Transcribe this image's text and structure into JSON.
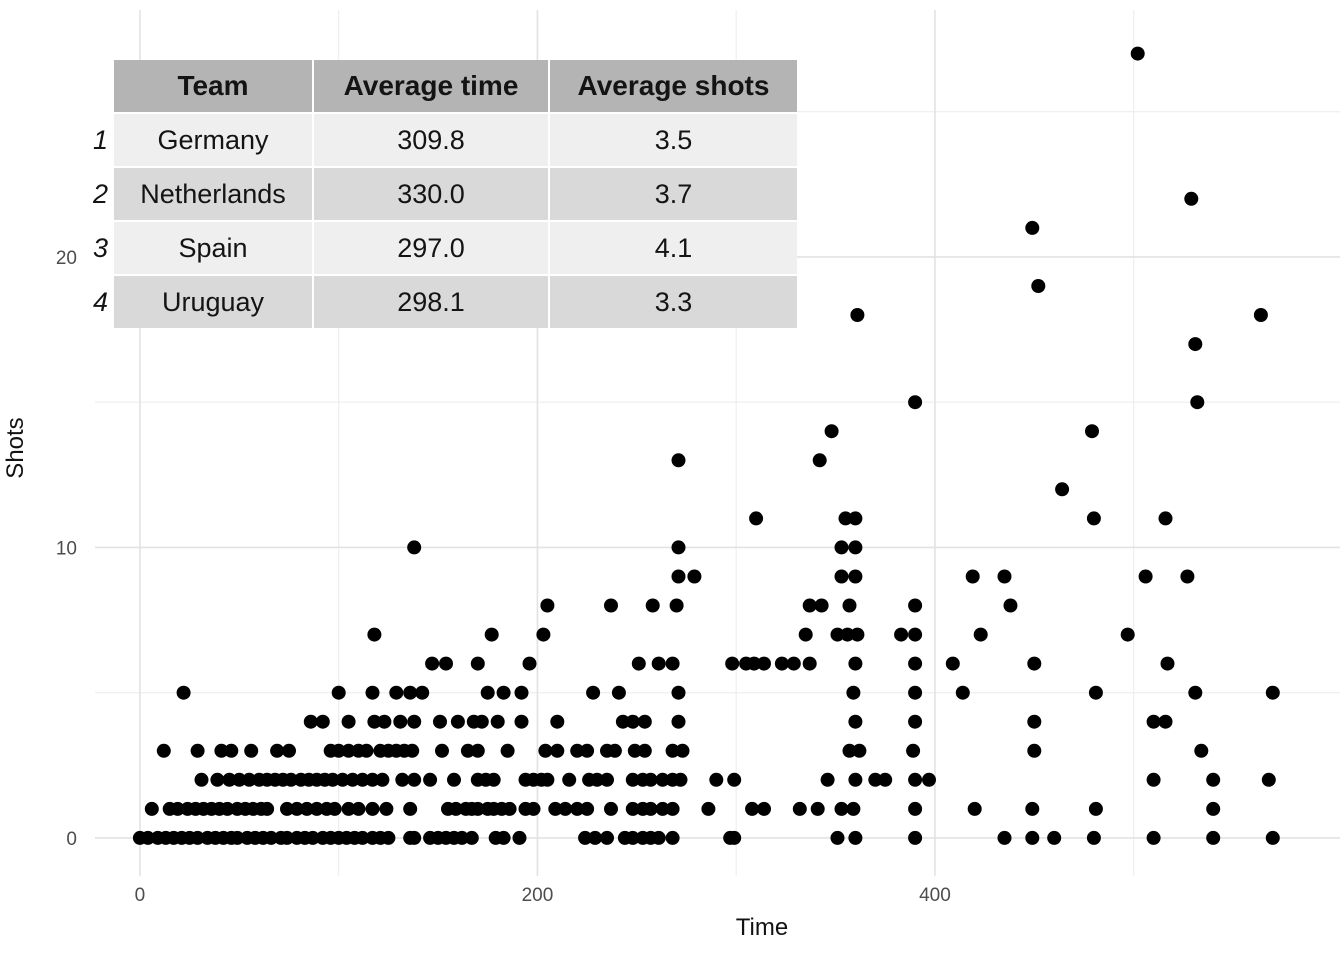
{
  "table": {
    "headers": [
      "Team",
      "Average time",
      "Average shots"
    ],
    "rows": [
      {
        "index": "1",
        "team": "Germany",
        "avg_time": "309.8",
        "avg_shots": "3.5"
      },
      {
        "index": "2",
        "team": "Netherlands",
        "avg_time": "330.0",
        "avg_shots": "3.7"
      },
      {
        "index": "3",
        "team": "Spain",
        "avg_time": "297.0",
        "avg_shots": "4.1"
      },
      {
        "index": "4",
        "team": "Uruguay",
        "avg_time": "298.1",
        "avg_shots": "3.3"
      }
    ]
  },
  "axes": {
    "x": {
      "title": "Time",
      "ticks": [
        0,
        200,
        400
      ]
    },
    "y": {
      "title": "Shots",
      "ticks": [
        0,
        10,
        20
      ]
    }
  },
  "colors": {
    "point": "#000000",
    "grid_major": "#e2e2e2",
    "grid_minor": "#eeeeee",
    "tick_label": "#4d4d4d",
    "table_header_bg": "#b4b4b4",
    "table_row_light": "#efefef",
    "table_row_dark": "#d9d9d9",
    "background": "#ffffff"
  },
  "chart_data": {
    "type": "scatter",
    "title": "",
    "xlabel": "Time",
    "ylabel": "Shots",
    "xlim": [
      -22.6,
      603.8
    ],
    "ylim": [
      -1.31,
      28.5
    ],
    "grid": true,
    "legend": "none",
    "x_major_ticks": [
      0,
      200,
      400
    ],
    "x_minor_gridlines": [
      100,
      300,
      500
    ],
    "y_major_ticks": [
      0,
      10,
      20
    ],
    "y_minor_gridlines": [
      5,
      15,
      25
    ],
    "point_radius": 7,
    "points": [
      [
        502,
        27
      ],
      [
        449,
        21
      ],
      [
        529,
        22
      ],
      [
        452,
        19
      ],
      [
        564,
        18
      ],
      [
        361,
        18
      ],
      [
        531,
        17
      ],
      [
        532,
        15
      ],
      [
        390,
        15
      ],
      [
        479,
        14
      ],
      [
        348,
        14
      ],
      [
        342,
        13
      ],
      [
        271,
        13
      ],
      [
        464,
        12
      ],
      [
        310,
        11
      ],
      [
        355,
        11
      ],
      [
        360,
        11
      ],
      [
        480,
        11
      ],
      [
        516,
        11
      ],
      [
        138,
        10
      ],
      [
        271,
        10
      ],
      [
        353,
        10
      ],
      [
        360,
        10
      ],
      [
        271,
        9
      ],
      [
        279,
        9
      ],
      [
        353,
        9
      ],
      [
        360,
        9
      ],
      [
        419,
        9
      ],
      [
        435,
        9
      ],
      [
        506,
        9
      ],
      [
        527,
        9
      ],
      [
        205,
        8
      ],
      [
        237,
        8
      ],
      [
        258,
        8
      ],
      [
        270,
        8
      ],
      [
        337,
        8
      ],
      [
        343,
        8
      ],
      [
        357,
        8
      ],
      [
        390,
        8
      ],
      [
        438,
        8
      ],
      [
        118,
        7
      ],
      [
        177,
        7
      ],
      [
        203,
        7
      ],
      [
        335,
        7
      ],
      [
        351,
        7
      ],
      [
        356,
        7
      ],
      [
        361,
        7
      ],
      [
        383,
        7
      ],
      [
        390,
        7
      ],
      [
        423,
        7
      ],
      [
        497,
        7
      ],
      [
        147,
        6
      ],
      [
        154,
        6
      ],
      [
        170,
        6
      ],
      [
        196,
        6
      ],
      [
        251,
        6
      ],
      [
        261,
        6
      ],
      [
        268,
        6
      ],
      [
        298,
        6
      ],
      [
        305,
        6
      ],
      [
        309,
        6
      ],
      [
        314,
        6
      ],
      [
        323,
        6
      ],
      [
        329,
        6
      ],
      [
        337,
        6
      ],
      [
        360,
        6
      ],
      [
        390,
        6
      ],
      [
        409,
        6
      ],
      [
        450,
        6
      ],
      [
        517,
        6
      ],
      [
        22,
        5
      ],
      [
        100,
        5
      ],
      [
        117,
        5
      ],
      [
        129,
        5
      ],
      [
        136,
        5
      ],
      [
        142,
        5
      ],
      [
        175,
        5
      ],
      [
        183,
        5
      ],
      [
        192,
        5
      ],
      [
        228,
        5
      ],
      [
        241,
        5
      ],
      [
        271,
        5
      ],
      [
        359,
        5
      ],
      [
        390,
        5
      ],
      [
        414,
        5
      ],
      [
        481,
        5
      ],
      [
        531,
        5
      ],
      [
        570,
        5
      ],
      [
        86,
        4
      ],
      [
        92,
        4
      ],
      [
        105,
        4
      ],
      [
        118,
        4
      ],
      [
        123,
        4
      ],
      [
        131,
        4
      ],
      [
        138,
        4
      ],
      [
        151,
        4
      ],
      [
        160,
        4
      ],
      [
        168,
        4
      ],
      [
        172,
        4
      ],
      [
        180,
        4
      ],
      [
        192,
        4
      ],
      [
        210,
        4
      ],
      [
        243,
        4
      ],
      [
        248,
        4
      ],
      [
        254,
        4
      ],
      [
        271,
        4
      ],
      [
        360,
        4
      ],
      [
        390,
        4
      ],
      [
        450,
        4
      ],
      [
        510,
        4
      ],
      [
        516,
        4
      ],
      [
        12,
        3
      ],
      [
        29,
        3
      ],
      [
        41,
        3
      ],
      [
        46,
        3
      ],
      [
        56,
        3
      ],
      [
        69,
        3
      ],
      [
        75,
        3
      ],
      [
        96,
        3
      ],
      [
        100,
        3
      ],
      [
        105,
        3
      ],
      [
        110,
        3
      ],
      [
        114,
        3
      ],
      [
        121,
        3
      ],
      [
        125,
        3
      ],
      [
        129,
        3
      ],
      [
        133,
        3
      ],
      [
        137,
        3
      ],
      [
        152,
        3
      ],
      [
        165,
        3
      ],
      [
        170,
        3
      ],
      [
        185,
        3
      ],
      [
        204,
        3
      ],
      [
        210,
        3
      ],
      [
        220,
        3
      ],
      [
        225,
        3
      ],
      [
        235,
        3
      ],
      [
        239,
        3
      ],
      [
        249,
        3
      ],
      [
        254,
        3
      ],
      [
        268,
        3
      ],
      [
        273,
        3
      ],
      [
        357,
        3
      ],
      [
        362,
        3
      ],
      [
        389,
        3
      ],
      [
        450,
        3
      ],
      [
        534,
        3
      ],
      [
        31,
        2
      ],
      [
        39,
        2
      ],
      [
        45,
        2
      ],
      [
        50,
        2
      ],
      [
        55,
        2
      ],
      [
        60,
        2
      ],
      [
        64,
        2
      ],
      [
        68,
        2
      ],
      [
        72,
        2
      ],
      [
        76,
        2
      ],
      [
        81,
        2
      ],
      [
        85,
        2
      ],
      [
        89,
        2
      ],
      [
        93,
        2
      ],
      [
        97,
        2
      ],
      [
        102,
        2
      ],
      [
        107,
        2
      ],
      [
        112,
        2
      ],
      [
        117,
        2
      ],
      [
        122,
        2
      ],
      [
        132,
        2
      ],
      [
        138,
        2
      ],
      [
        146,
        2
      ],
      [
        158,
        2
      ],
      [
        170,
        2
      ],
      [
        174,
        2
      ],
      [
        178,
        2
      ],
      [
        194,
        2
      ],
      [
        198,
        2
      ],
      [
        202,
        2
      ],
      [
        205,
        2
      ],
      [
        216,
        2
      ],
      [
        226,
        2
      ],
      [
        230,
        2
      ],
      [
        235,
        2
      ],
      [
        248,
        2
      ],
      [
        253,
        2
      ],
      [
        257,
        2
      ],
      [
        263,
        2
      ],
      [
        268,
        2
      ],
      [
        272,
        2
      ],
      [
        290,
        2
      ],
      [
        299,
        2
      ],
      [
        346,
        2
      ],
      [
        360,
        2
      ],
      [
        370,
        2
      ],
      [
        375,
        2
      ],
      [
        390,
        2
      ],
      [
        397,
        2
      ],
      [
        510,
        2
      ],
      [
        540,
        2
      ],
      [
        568,
        2
      ],
      [
        6,
        1
      ],
      [
        15,
        1
      ],
      [
        19,
        1
      ],
      [
        24,
        1
      ],
      [
        28,
        1
      ],
      [
        32,
        1
      ],
      [
        36,
        1
      ],
      [
        40,
        1
      ],
      [
        44,
        1
      ],
      [
        49,
        1
      ],
      [
        53,
        1
      ],
      [
        57,
        1
      ],
      [
        61,
        1
      ],
      [
        64,
        1
      ],
      [
        74,
        1
      ],
      [
        79,
        1
      ],
      [
        84,
        1
      ],
      [
        89,
        1
      ],
      [
        94,
        1
      ],
      [
        98,
        1
      ],
      [
        105,
        1
      ],
      [
        110,
        1
      ],
      [
        117,
        1
      ],
      [
        124,
        1
      ],
      [
        136,
        1
      ],
      [
        155,
        1
      ],
      [
        159,
        1
      ],
      [
        164,
        1
      ],
      [
        167,
        1
      ],
      [
        170,
        1
      ],
      [
        175,
        1
      ],
      [
        178,
        1
      ],
      [
        182,
        1
      ],
      [
        186,
        1
      ],
      [
        194,
        1
      ],
      [
        198,
        1
      ],
      [
        209,
        1
      ],
      [
        214,
        1
      ],
      [
        220,
        1
      ],
      [
        225,
        1
      ],
      [
        237,
        1
      ],
      [
        248,
        1
      ],
      [
        253,
        1
      ],
      [
        257,
        1
      ],
      [
        263,
        1
      ],
      [
        268,
        1
      ],
      [
        286,
        1
      ],
      [
        308,
        1
      ],
      [
        314,
        1
      ],
      [
        332,
        1
      ],
      [
        341,
        1
      ],
      [
        353,
        1
      ],
      [
        359,
        1
      ],
      [
        390,
        1
      ],
      [
        420,
        1
      ],
      [
        449,
        1
      ],
      [
        481,
        1
      ],
      [
        540,
        1
      ],
      [
        0,
        0
      ],
      [
        4,
        0
      ],
      [
        9,
        0
      ],
      [
        13,
        0
      ],
      [
        17,
        0
      ],
      [
        21,
        0
      ],
      [
        25,
        0
      ],
      [
        29,
        0
      ],
      [
        34,
        0
      ],
      [
        38,
        0
      ],
      [
        42,
        0
      ],
      [
        46,
        0
      ],
      [
        49,
        0
      ],
      [
        54,
        0
      ],
      [
        58,
        0
      ],
      [
        62,
        0
      ],
      [
        66,
        0
      ],
      [
        71,
        0
      ],
      [
        74,
        0
      ],
      [
        79,
        0
      ],
      [
        83,
        0
      ],
      [
        87,
        0
      ],
      [
        92,
        0
      ],
      [
        96,
        0
      ],
      [
        100,
        0
      ],
      [
        104,
        0
      ],
      [
        108,
        0
      ],
      [
        112,
        0
      ],
      [
        117,
        0
      ],
      [
        121,
        0
      ],
      [
        125,
        0
      ],
      [
        136,
        0
      ],
      [
        138,
        0
      ],
      [
        146,
        0
      ],
      [
        150,
        0
      ],
      [
        154,
        0
      ],
      [
        158,
        0
      ],
      [
        162,
        0
      ],
      [
        167,
        0
      ],
      [
        179,
        0
      ],
      [
        183,
        0
      ],
      [
        191,
        0
      ],
      [
        224,
        0
      ],
      [
        229,
        0
      ],
      [
        235,
        0
      ],
      [
        244,
        0
      ],
      [
        248,
        0
      ],
      [
        253,
        0
      ],
      [
        257,
        0
      ],
      [
        261,
        0
      ],
      [
        268,
        0
      ],
      [
        297,
        0
      ],
      [
        299,
        0
      ],
      [
        351,
        0
      ],
      [
        360,
        0
      ],
      [
        390,
        0
      ],
      [
        435,
        0
      ],
      [
        449,
        0
      ],
      [
        460,
        0
      ],
      [
        480,
        0
      ],
      [
        510,
        0
      ],
      [
        540,
        0
      ],
      [
        570,
        0
      ]
    ]
  }
}
